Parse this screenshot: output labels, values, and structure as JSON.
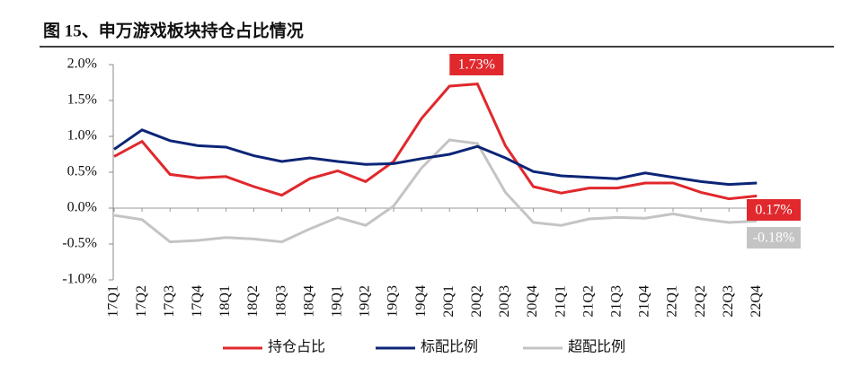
{
  "chart_data": {
    "type": "line",
    "title": "图 15、申万游戏板块持仓占比情况",
    "categories": [
      "17Q1",
      "17Q2",
      "17Q3",
      "17Q4",
      "18Q1",
      "18Q2",
      "18Q3",
      "18Q4",
      "19Q1",
      "19Q2",
      "19Q3",
      "19Q4",
      "20Q1",
      "20Q2",
      "20Q3",
      "20Q4",
      "21Q1",
      "21Q2",
      "21Q3",
      "21Q4",
      "22Q1",
      "22Q2",
      "22Q3",
      "22Q4"
    ],
    "series": [
      {
        "name": "持仓占比",
        "color": "#e0282d",
        "values": [
          0.72,
          0.93,
          0.47,
          0.42,
          0.44,
          0.3,
          0.18,
          0.41,
          0.52,
          0.37,
          0.65,
          1.25,
          1.7,
          1.73,
          0.87,
          0.3,
          0.21,
          0.28,
          0.28,
          0.35,
          0.35,
          0.22,
          0.13,
          0.17
        ],
        "value_labels": [
          null,
          null,
          null,
          null,
          null,
          null,
          null,
          null,
          null,
          null,
          null,
          null,
          null,
          "1.73%",
          null,
          null,
          null,
          null,
          null,
          null,
          null,
          null,
          null,
          "0.17%"
        ]
      },
      {
        "name": "标配比例",
        "color": "#0c2577",
        "values": [
          0.82,
          1.09,
          0.94,
          0.87,
          0.85,
          0.73,
          0.65,
          0.7,
          0.65,
          0.61,
          0.62,
          0.69,
          0.75,
          0.86,
          0.7,
          0.51,
          0.45,
          0.43,
          0.41,
          0.49,
          0.43,
          0.37,
          0.33,
          0.35
        ]
      },
      {
        "name": "超配比例",
        "color": "#c4c4c4",
        "values": [
          -0.1,
          -0.16,
          -0.47,
          -0.45,
          -0.41,
          -0.43,
          -0.47,
          -0.29,
          -0.13,
          -0.24,
          0.03,
          0.56,
          0.95,
          0.9,
          0.22,
          -0.2,
          -0.24,
          -0.15,
          -0.13,
          -0.14,
          -0.08,
          -0.15,
          -0.2,
          -0.18
        ],
        "value_labels": [
          null,
          null,
          null,
          null,
          null,
          null,
          null,
          null,
          null,
          null,
          null,
          null,
          null,
          null,
          null,
          null,
          null,
          null,
          null,
          null,
          null,
          null,
          null,
          "-0.18%"
        ]
      }
    ],
    "ylim": [
      -1,
      2
    ],
    "yticks": [
      {
        "value": -1,
        "label": "-1.0%"
      },
      {
        "value": -0.5,
        "label": "-0.5%"
      },
      {
        "value": 0,
        "label": "0.0%"
      },
      {
        "value": 0.5,
        "label": "0.5%"
      },
      {
        "value": 1,
        "label": "1.0%"
      },
      {
        "value": 1.5,
        "label": "1.5%"
      },
      {
        "value": 2,
        "label": "2.0%"
      }
    ],
    "legend": "bottom"
  }
}
